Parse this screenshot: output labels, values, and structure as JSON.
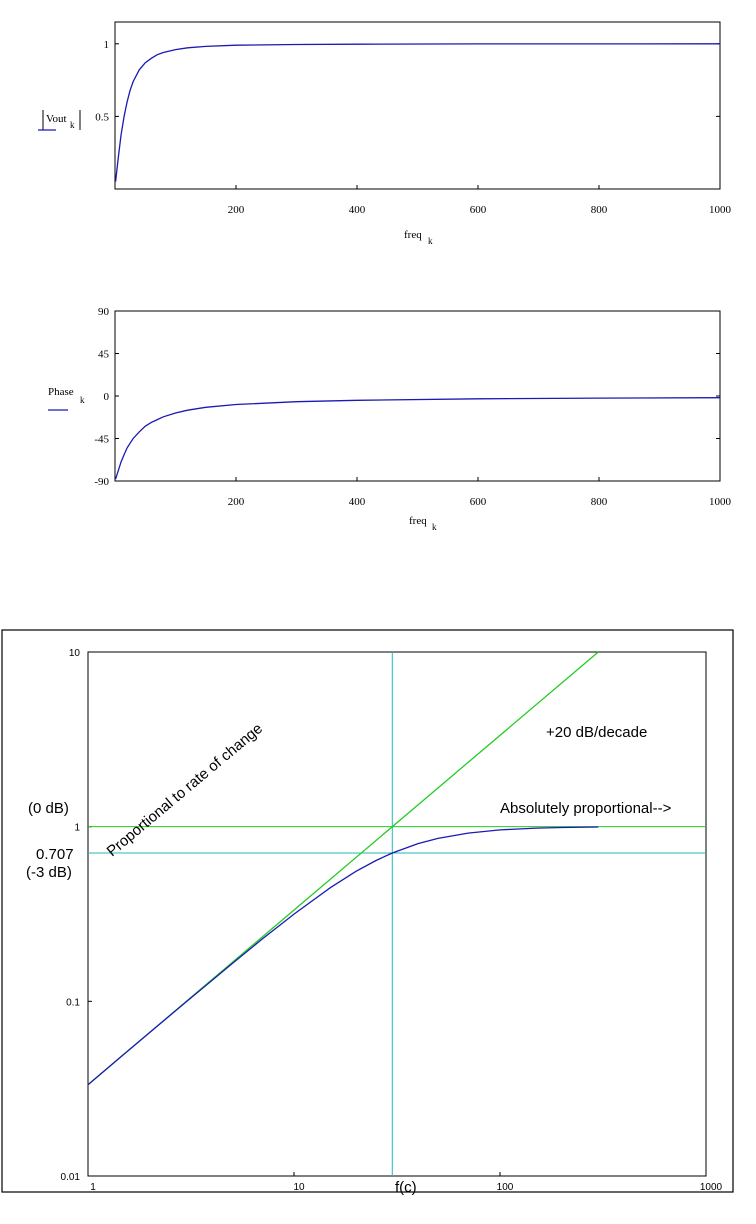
{
  "chart_data": [
    {
      "type": "line",
      "title": "",
      "xlabel": "freq",
      "xlabel_sub": "k",
      "ylabel": "Vout",
      "ylabel_sub": "k",
      "xlim": [
        0,
        1000
      ],
      "ylim": [
        0,
        1.15
      ],
      "x_ticks": [
        200,
        400,
        600,
        800,
        1000
      ],
      "y_ticks": [
        0.5,
        1
      ],
      "y_tick_labels": [
        "0.5",
        "1"
      ],
      "series_color": "#1a1ab4",
      "series": [
        {
          "x": [
            1,
            5,
            10,
            15,
            20,
            25,
            30,
            40,
            50,
            60,
            70,
            80,
            100,
            120,
            150,
            200,
            300,
            400,
            600,
            800,
            1000
          ],
          "y": [
            0.05,
            0.2,
            0.37,
            0.5,
            0.6,
            0.68,
            0.74,
            0.82,
            0.87,
            0.9,
            0.925,
            0.94,
            0.96,
            0.972,
            0.982,
            0.99,
            0.995,
            0.997,
            0.999,
            0.999,
            1.0
          ]
        }
      ]
    },
    {
      "type": "line",
      "title": "",
      "xlabel": "freq",
      "xlabel_sub": "k",
      "ylabel": "Phase",
      "ylabel_sub": "k",
      "xlim": [
        0,
        1000
      ],
      "ylim": [
        -90,
        90
      ],
      "x_ticks": [
        200,
        400,
        600,
        800,
        1000
      ],
      "y_ticks": [
        -90,
        -45,
        0,
        45,
        90
      ],
      "y_tick_labels": [
        "-90",
        "-45",
        "0",
        "45",
        "90"
      ],
      "series_color": "#1a1ab4",
      "series": [
        {
          "x": [
            1,
            5,
            10,
            15,
            20,
            25,
            30,
            40,
            50,
            60,
            70,
            80,
            100,
            120,
            150,
            200,
            300,
            400,
            600,
            800,
            1000
          ],
          "y": [
            -88,
            -80,
            -70,
            -62,
            -55,
            -50,
            -45,
            -38,
            -32,
            -28,
            -25,
            -22,
            -18,
            -15,
            -12,
            -9,
            -6,
            -4.5,
            -3,
            -2.2,
            -1.8
          ]
        }
      ]
    },
    {
      "type": "line",
      "title": "",
      "xlabel": "f(c)",
      "xscale": "log",
      "yscale": "log",
      "xlim": [
        1,
        1000
      ],
      "ylim": [
        0.01,
        10
      ],
      "x_ticks": [
        1,
        10,
        100,
        1000
      ],
      "x_tick_labels": [
        "1",
        "10",
        "100",
        "1000"
      ],
      "y_ticks": [
        0.01,
        0.1,
        1,
        10
      ],
      "y_tick_labels": [
        "0.01",
        "0.1",
        "1",
        "10"
      ],
      "cutoff_frequency": 30,
      "reference_levels": [
        {
          "value": 1,
          "label": "(0 dB)",
          "tick_label": "1",
          "color": "#22cc22"
        },
        {
          "value": 0.707,
          "label": "0.707",
          "label2": "(-3 dB)",
          "color": "#22b8b8"
        }
      ],
      "asymptote": {
        "x": [
          1,
          300
        ],
        "y": [
          0.0333,
          10
        ],
        "color": "#22cc22"
      },
      "response": {
        "color": "#1a1ab4",
        "x": [
          1,
          1.5,
          2,
          3,
          5,
          7,
          10,
          15,
          20,
          25,
          30,
          40,
          50,
          70,
          100,
          150,
          200,
          300
        ],
        "y": [
          0.0333,
          0.05,
          0.0665,
          0.0995,
          0.164,
          0.227,
          0.316,
          0.447,
          0.555,
          0.64,
          0.707,
          0.8,
          0.857,
          0.919,
          0.958,
          0.981,
          0.989,
          0.995
        ]
      },
      "annotations": [
        "+20 dB/decade",
        "Absolutely proportional-->",
        "Proportional to rate of change"
      ]
    }
  ]
}
